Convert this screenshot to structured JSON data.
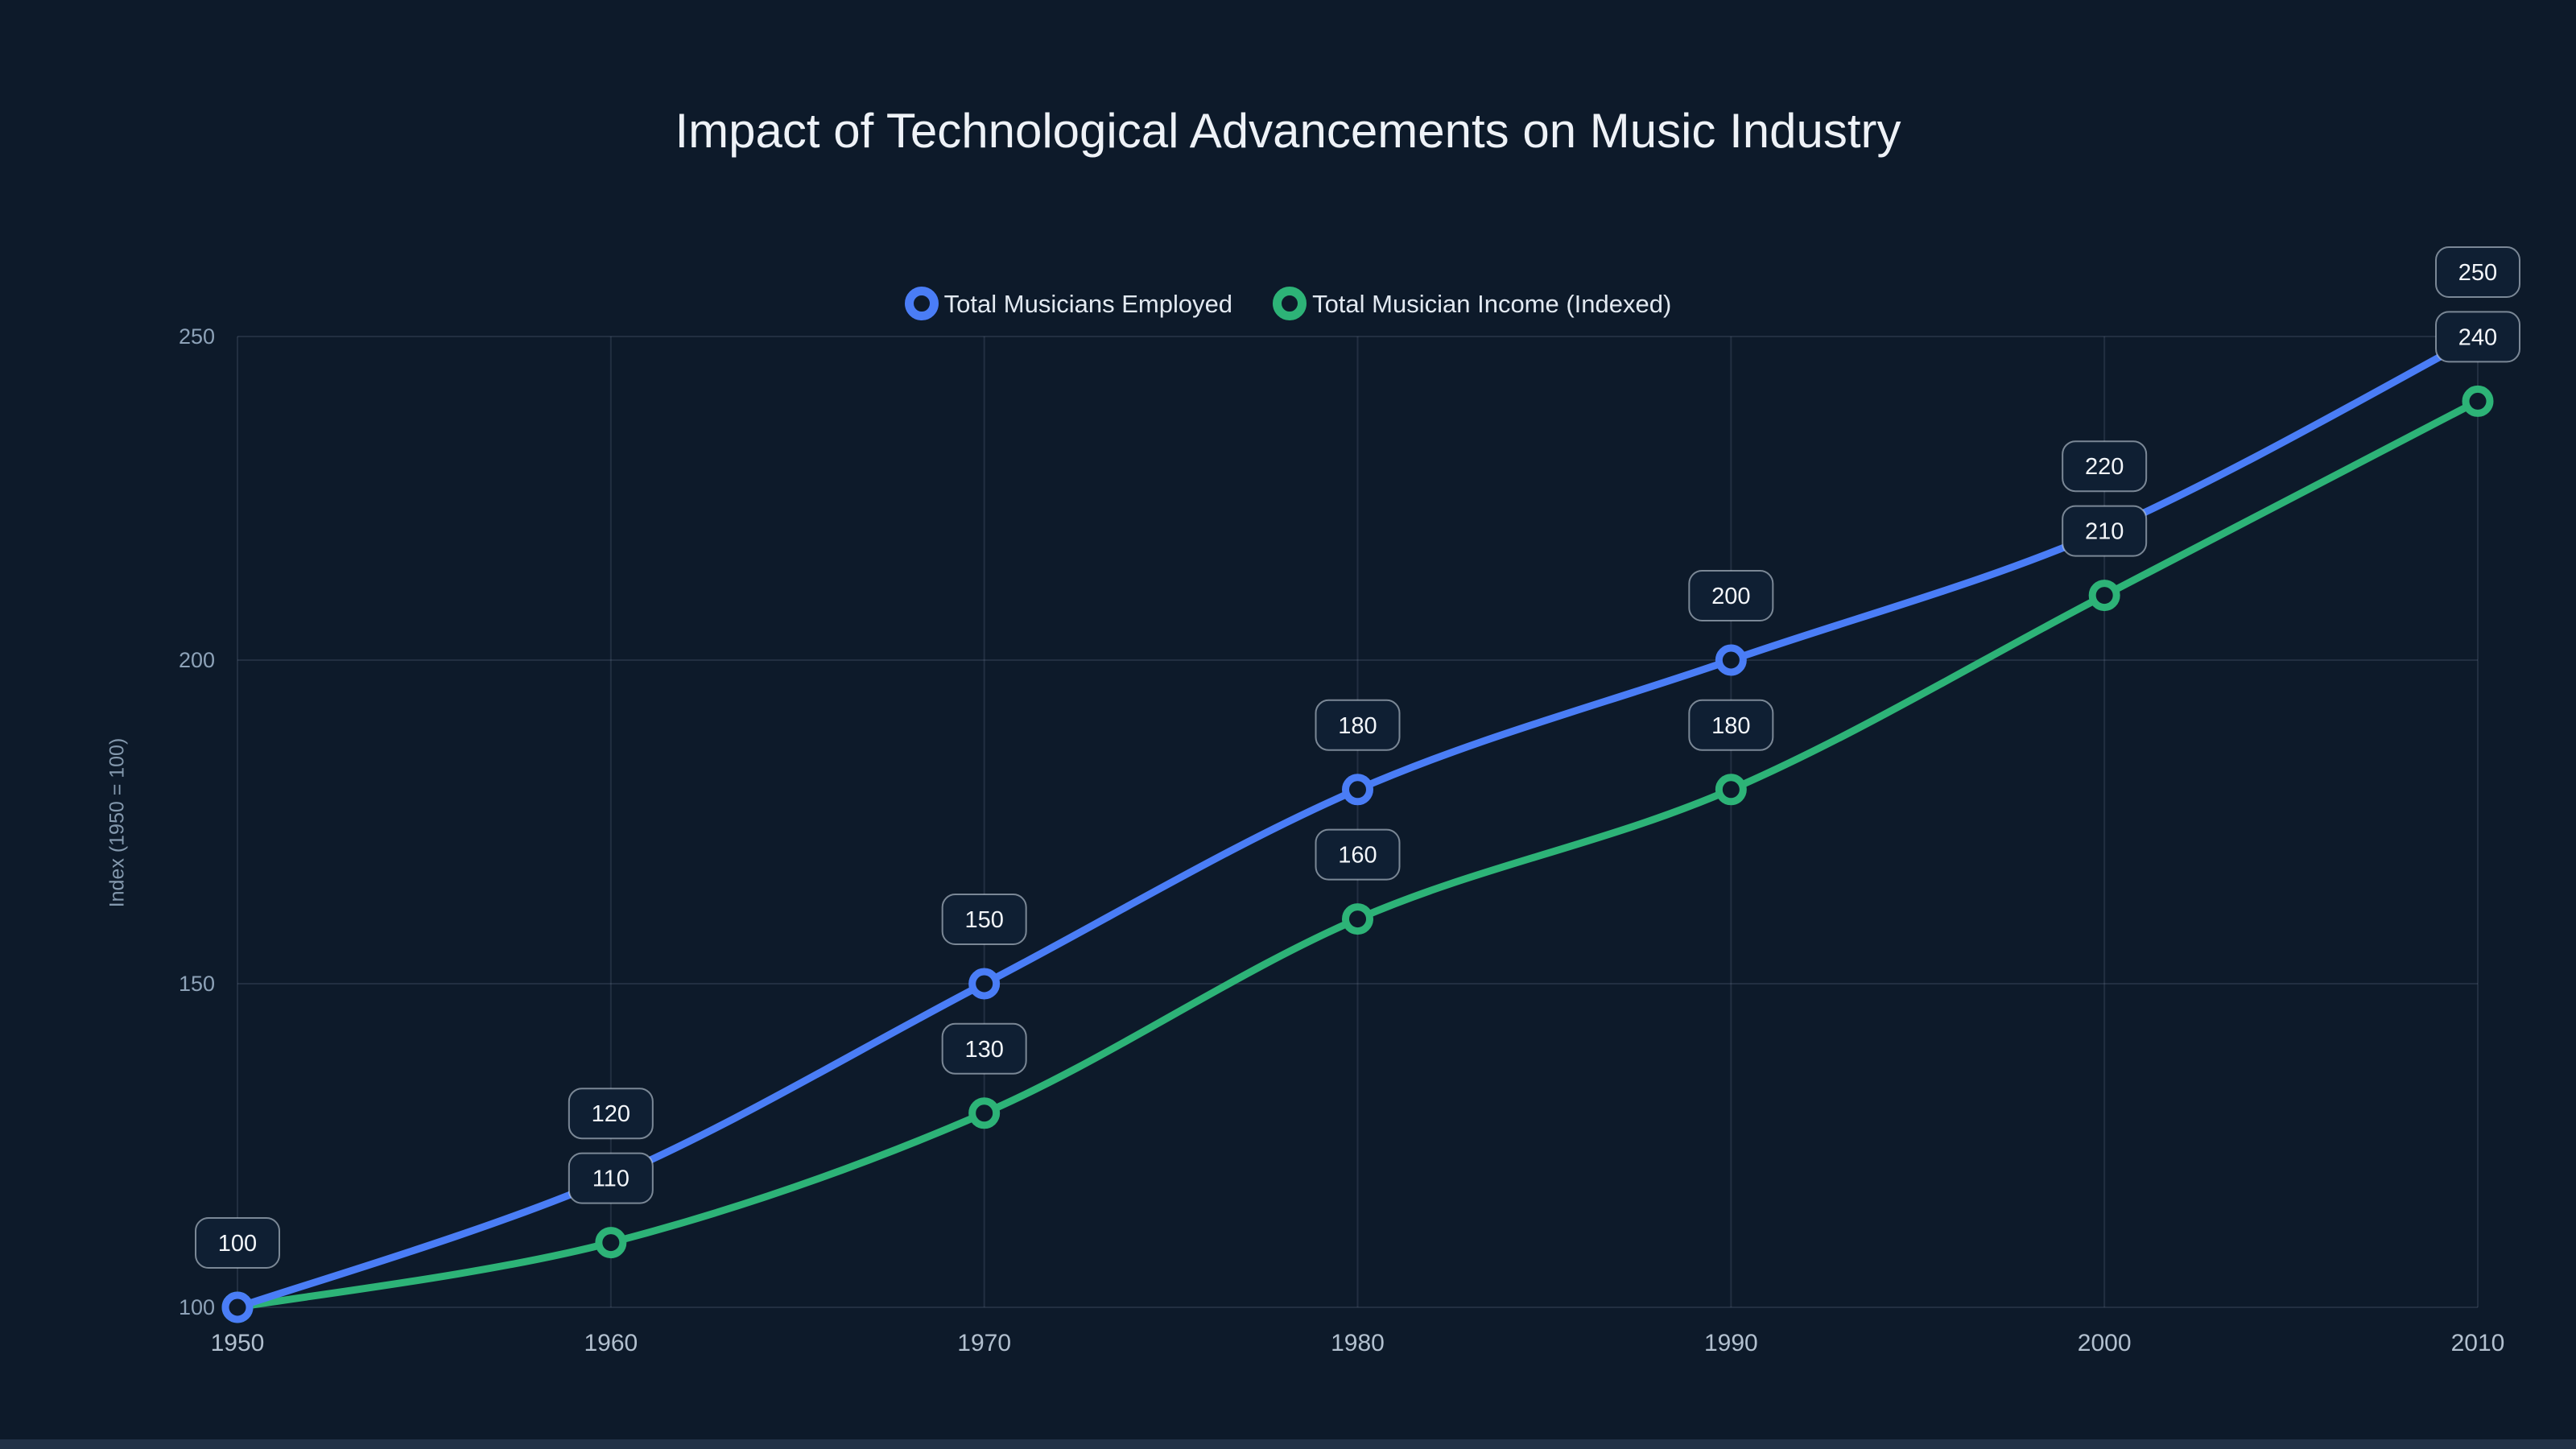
{
  "colors": {
    "background": "#0d1a2a",
    "grid": "rgba(148,163,184,0.16)",
    "y_tick_text": "#8da2b8",
    "x_tick_text": "#b2c0cf",
    "label_box_bg": "#0f1f33",
    "label_box_border": "rgba(214,224,235,0.55)",
    "label_text": "#f3f6fa"
  },
  "chart_data": {
    "type": "line",
    "title": "Impact of Technological Advancements on Music Industry",
    "x": [
      1950,
      1960,
      1970,
      1980,
      1990,
      2000,
      2010
    ],
    "series": [
      {
        "name": "Total Musicians Employed",
        "color": "#4a7df6",
        "values": [
          100,
          120,
          150,
          180,
          200,
          220,
          250
        ]
      },
      {
        "name": "Total Musician Income (Indexed)",
        "color": "#2db377",
        "values": [
          100,
          110,
          130,
          160,
          180,
          210,
          240
        ]
      }
    ],
    "xlabel": "",
    "ylabel": "Index (1950 = 100)",
    "ylim": [
      100,
      250
    ],
    "y_ticks": [
      100,
      150,
      200,
      250
    ],
    "grid": true,
    "legend_position": "top",
    "point_labels_visible": true
  }
}
